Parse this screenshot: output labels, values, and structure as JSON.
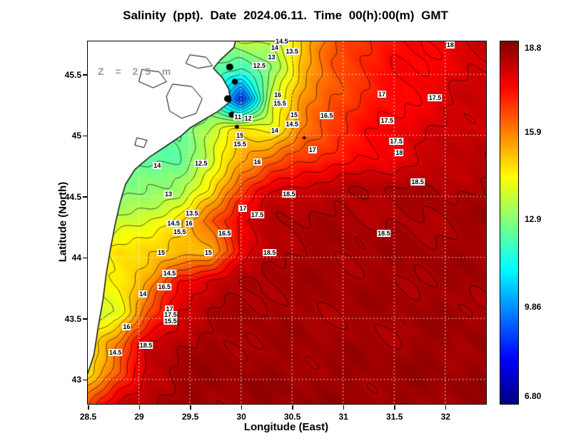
{
  "title": "Salinity (ppt). Date 2024.06.11. Time 00(h):00(m) GMT",
  "annotation": "Z = 2.5 m",
  "axes": {
    "x_label": "Longitude (East)",
    "y_label": "Latitude (North)",
    "x_ticks": [
      "28.5",
      "29",
      "29.5",
      "30",
      "30.5",
      "31",
      "31.5",
      "32"
    ],
    "x_tick_values": [
      28.5,
      29,
      29.5,
      30,
      30.5,
      31,
      31.5,
      32
    ],
    "y_ticks": [
      "43",
      "43.5",
      "44",
      "44.5",
      "45",
      "45.5"
    ],
    "y_tick_values": [
      43,
      43.5,
      44,
      44.5,
      45,
      45.5
    ],
    "lon_range": [
      28.5,
      32.4
    ],
    "lat_range": [
      42.8,
      45.77
    ],
    "grid": "dotted-white"
  },
  "colorbar": {
    "labels": [
      "18.8",
      "15.9",
      "12.9",
      "9.86",
      "6.80"
    ],
    "label_values": [
      18.8,
      15.9,
      12.9,
      9.86,
      6.8
    ],
    "vmin": 6.55,
    "vmax": 19.05,
    "stops": [
      [
        0,
        "#000080"
      ],
      [
        0.125,
        "#0000FF"
      ],
      [
        0.375,
        "#00FFFF"
      ],
      [
        0.625,
        "#FFFF00"
      ],
      [
        0.875,
        "#FF0000"
      ],
      [
        1,
        "#800000"
      ]
    ]
  },
  "chart_data": {
    "type": "heatmap",
    "variable": "Salinity (ppt)",
    "title": "Salinity (ppt). Date 2024.06.11. Time 00(h):00(m) GMT",
    "xlabel": "Longitude (East)",
    "ylabel": "Latitude (North)",
    "depth_annotation": "Z = 2.5 m",
    "contour_interval": 0.5,
    "lon": [
      28.5,
      28.8,
      29.1,
      29.4,
      29.7,
      30.0,
      30.3,
      30.6,
      30.9,
      31.2,
      31.5,
      31.8,
      32.1,
      32.4
    ],
    "lat": [
      45.8,
      45.55,
      45.3,
      45.05,
      44.8,
      44.55,
      44.3,
      44.05,
      43.8,
      43.55,
      43.3,
      43.05,
      42.8
    ],
    "values": [
      [
        13.0,
        13.0,
        13.0,
        13.0,
        13.2,
        13.8,
        13.5,
        15.0,
        16.3,
        17.0,
        17.4,
        17.6,
        17.9,
        18.1
      ],
      [
        12.5,
        12.5,
        12.5,
        12.5,
        12.6,
        12.0,
        13.0,
        15.3,
        16.4,
        17.0,
        17.4,
        17.5,
        17.8,
        18.1
      ],
      [
        12.0,
        12.0,
        12.0,
        12.2,
        12.5,
        8.5,
        13.8,
        15.5,
        16.5,
        17.1,
        17.4,
        17.7,
        18.0,
        18.2
      ],
      [
        12.0,
        12.0,
        12.2,
        12.5,
        13.5,
        14.8,
        14.3,
        16.0,
        16.9,
        17.3,
        17.6,
        17.9,
        18.1,
        18.3
      ],
      [
        12.0,
        12.1,
        12.3,
        12.6,
        13.8,
        15.5,
        16.2,
        16.8,
        17.2,
        17.5,
        17.8,
        18.1,
        18.3,
        18.4
      ],
      [
        12.5,
        12.8,
        13.0,
        13.2,
        14.5,
        16.8,
        18.0,
        18.3,
        18.4,
        18.5,
        18.5,
        18.5,
        18.5,
        18.5
      ],
      [
        13.0,
        13.5,
        14.0,
        14.8,
        16.5,
        17.8,
        18.4,
        18.5,
        18.5,
        18.5,
        18.5,
        18.5,
        18.6,
        18.6
      ],
      [
        14.0,
        14.8,
        15.0,
        15.0,
        15.2,
        17.5,
        18.5,
        18.6,
        18.6,
        18.6,
        18.6,
        18.6,
        18.6,
        18.6
      ],
      [
        13.8,
        14.5,
        15.5,
        17.5,
        18.2,
        18.5,
        18.6,
        18.6,
        18.6,
        18.6,
        18.6,
        18.6,
        18.6,
        18.6
      ],
      [
        13.5,
        14.2,
        16.5,
        18.0,
        18.4,
        18.6,
        18.6,
        18.6,
        18.6,
        18.6,
        18.6,
        18.6,
        18.6,
        18.6
      ],
      [
        14.5,
        16.0,
        18.0,
        18.5,
        18.6,
        18.6,
        18.6,
        18.6,
        18.6,
        18.6,
        18.6,
        18.7,
        18.7,
        18.7
      ],
      [
        14.8,
        16.5,
        18.3,
        18.6,
        18.7,
        18.7,
        18.7,
        18.7,
        18.7,
        18.7,
        18.7,
        18.7,
        18.7,
        18.7
      ],
      [
        16.5,
        18.0,
        18.5,
        18.7,
        18.7,
        18.7,
        18.7,
        18.7,
        18.7,
        18.7,
        18.7,
        18.7,
        18.7,
        18.7
      ]
    ],
    "contour_labels": [
      {
        "t": "14.5",
        "lon": 30.4,
        "lat": 45.77
      },
      {
        "t": "14",
        "lon": 30.33,
        "lat": 45.72
      },
      {
        "t": "13.5",
        "lon": 30.5,
        "lat": 45.69
      },
      {
        "t": "13",
        "lon": 30.3,
        "lat": 45.64
      },
      {
        "t": "12.5",
        "lon": 30.18,
        "lat": 45.57
      },
      {
        "t": "18",
        "lon": 32.05,
        "lat": 45.74
      },
      {
        "t": "16",
        "lon": 30.36,
        "lat": 45.33
      },
      {
        "t": "15.5",
        "lon": 30.38,
        "lat": 45.26
      },
      {
        "t": "17",
        "lon": 31.38,
        "lat": 45.34
      },
      {
        "t": "17.5",
        "lon": 31.9,
        "lat": 45.31
      },
      {
        "t": "16.5",
        "lon": 30.84,
        "lat": 45.16
      },
      {
        "t": "17.5",
        "lon": 31.43,
        "lat": 45.12
      },
      {
        "t": "15",
        "lon": 30.52,
        "lat": 45.17
      },
      {
        "t": "14.5",
        "lon": 30.5,
        "lat": 45.09
      },
      {
        "t": "11",
        "lon": 29.97,
        "lat": 45.15
      },
      {
        "t": "12",
        "lon": 30.07,
        "lat": 45.14
      },
      {
        "t": "15",
        "lon": 29.99,
        "lat": 45.0
      },
      {
        "t": "15.5",
        "lon": 29.99,
        "lat": 44.93
      },
      {
        "t": "14",
        "lon": 30.33,
        "lat": 45.04
      },
      {
        "t": "17",
        "lon": 30.7,
        "lat": 44.88
      },
      {
        "t": "17.5",
        "lon": 31.52,
        "lat": 44.95
      },
      {
        "t": "18",
        "lon": 31.55,
        "lat": 44.86
      },
      {
        "t": "16",
        "lon": 30.16,
        "lat": 44.78
      },
      {
        "t": "12.5",
        "lon": 29.61,
        "lat": 44.77
      },
      {
        "t": "14",
        "lon": 29.18,
        "lat": 44.75
      },
      {
        "t": "18.5",
        "lon": 31.73,
        "lat": 44.62
      },
      {
        "t": "13",
        "lon": 29.29,
        "lat": 44.52
      },
      {
        "t": "18.5",
        "lon": 30.47,
        "lat": 44.52
      },
      {
        "t": "17",
        "lon": 30.02,
        "lat": 44.4
      },
      {
        "t": "17.5",
        "lon": 30.16,
        "lat": 44.35
      },
      {
        "t": "13.5",
        "lon": 29.52,
        "lat": 44.36
      },
      {
        "t": "14.5",
        "lon": 29.34,
        "lat": 44.28
      },
      {
        "t": "16",
        "lon": 29.49,
        "lat": 44.28
      },
      {
        "t": "15.5",
        "lon": 29.4,
        "lat": 44.21
      },
      {
        "t": "16.5",
        "lon": 29.84,
        "lat": 44.2
      },
      {
        "t": "18.5",
        "lon": 31.4,
        "lat": 44.2
      },
      {
        "t": "18.5",
        "lon": 30.28,
        "lat": 44.04
      },
      {
        "t": "15",
        "lon": 29.22,
        "lat": 44.04
      },
      {
        "t": "15",
        "lon": 29.68,
        "lat": 44.04
      },
      {
        "t": "14.5",
        "lon": 29.3,
        "lat": 43.87
      },
      {
        "t": "16.5",
        "lon": 29.25,
        "lat": 43.76
      },
      {
        "t": "14",
        "lon": 29.04,
        "lat": 43.7
      },
      {
        "t": "17",
        "lon": 29.3,
        "lat": 43.58
      },
      {
        "t": "17.5",
        "lon": 29.31,
        "lat": 43.53
      },
      {
        "t": "15.5",
        "lon": 29.31,
        "lat": 43.48
      },
      {
        "t": "16",
        "lon": 28.88,
        "lat": 43.43
      },
      {
        "t": "18.5",
        "lon": 29.07,
        "lat": 43.28
      },
      {
        "t": "14.5",
        "lon": 28.77,
        "lat": 43.22
      }
    ]
  },
  "map": {
    "land_color": "#FFFFFF",
    "coast_color": "#000000",
    "grid_color": "#FFFFFF",
    "land_polygon": [
      [
        28.44,
        45.85
      ],
      [
        29.97,
        45.85
      ],
      [
        29.93,
        45.72
      ],
      [
        29.8,
        45.62
      ],
      [
        29.73,
        45.55
      ],
      [
        29.82,
        45.47
      ],
      [
        29.88,
        45.38
      ],
      [
        29.9,
        45.28
      ],
      [
        29.78,
        45.2
      ],
      [
        29.62,
        45.12
      ],
      [
        29.5,
        45.06
      ],
      [
        29.42,
        45.0
      ],
      [
        29.28,
        44.92
      ],
      [
        29.1,
        44.82
      ],
      [
        28.96,
        44.72
      ],
      [
        28.87,
        44.6
      ],
      [
        28.82,
        44.46
      ],
      [
        28.77,
        44.28
      ],
      [
        28.72,
        44.06
      ],
      [
        28.68,
        43.86
      ],
      [
        28.65,
        43.66
      ],
      [
        28.6,
        43.42
      ],
      [
        28.56,
        43.2
      ],
      [
        28.5,
        43.05
      ],
      [
        28.44,
        42.98
      ]
    ],
    "lakes": [
      [
        [
          29.33,
          45.42
        ],
        [
          29.52,
          45.4
        ],
        [
          29.62,
          45.3
        ],
        [
          29.56,
          45.18
        ],
        [
          29.42,
          45.14
        ],
        [
          29.3,
          45.2
        ],
        [
          29.27,
          45.32
        ]
      ],
      [
        [
          29.03,
          45.54
        ],
        [
          29.2,
          45.52
        ],
        [
          29.27,
          45.44
        ],
        [
          29.14,
          45.39
        ],
        [
          29.0,
          45.44
        ]
      ],
      [
        [
          29.5,
          45.66
        ],
        [
          29.66,
          45.64
        ],
        [
          29.72,
          45.57
        ],
        [
          29.58,
          45.55
        ],
        [
          29.46,
          45.59
        ]
      ],
      [
        [
          28.98,
          44.98
        ],
        [
          29.08,
          44.96
        ],
        [
          29.05,
          44.9
        ],
        [
          28.96,
          44.92
        ]
      ]
    ],
    "islets": [
      {
        "lon": 29.89,
        "lat": 45.56,
        "r": 0.035
      },
      {
        "lon": 29.94,
        "lat": 45.44,
        "r": 0.03
      },
      {
        "lon": 29.87,
        "lat": 45.3,
        "r": 0.035
      },
      {
        "lon": 29.91,
        "lat": 45.17,
        "r": 0.03
      },
      {
        "lon": 29.96,
        "lat": 45.07,
        "r": 0.02
      },
      {
        "lon": 30.62,
        "lat": 44.98,
        "r": 0.015
      }
    ]
  }
}
